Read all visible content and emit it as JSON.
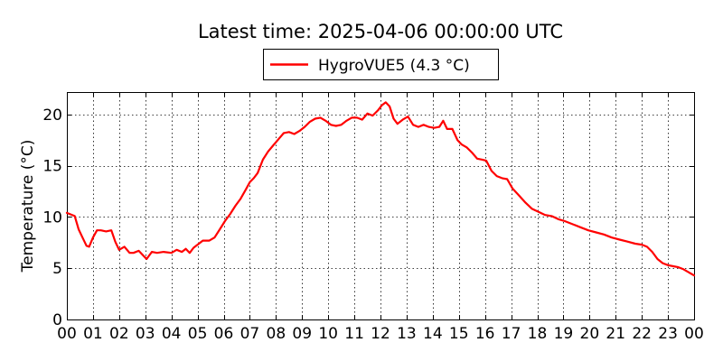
{
  "chart_data": {
    "type": "line",
    "title": "Latest time: 2025-04-06 00:00:00 UTC",
    "xlabel": "",
    "ylabel": "Temperature (°C)",
    "xlim": [
      0,
      24
    ],
    "ylim": [
      0,
      22.2
    ],
    "x_ticks": [
      "00",
      "01",
      "02",
      "03",
      "04",
      "05",
      "06",
      "07",
      "08",
      "09",
      "10",
      "11",
      "12",
      "13",
      "14",
      "15",
      "16",
      "17",
      "18",
      "19",
      "20",
      "21",
      "22",
      "23",
      "00"
    ],
    "y_ticks": [
      0,
      5,
      10,
      15,
      20
    ],
    "grid": true,
    "legend": {
      "placement": "top-center",
      "entries": [
        "HygroVUE5 (4.3 °C)"
      ]
    },
    "series": [
      {
        "name": "HygroVUE5 (4.3 °C)",
        "color": "#ff0000",
        "x": [
          0.0,
          0.3,
          0.45,
          0.6,
          0.75,
          0.85,
          1.0,
          1.15,
          1.3,
          1.5,
          1.7,
          1.85,
          2.0,
          2.2,
          2.4,
          2.55,
          2.75,
          2.9,
          3.05,
          3.25,
          3.45,
          3.7,
          4.0,
          4.2,
          4.4,
          4.55,
          4.7,
          4.85,
          5.0,
          5.2,
          5.45,
          5.65,
          5.85,
          6.05,
          6.25,
          6.45,
          6.65,
          6.85,
          7.0,
          7.15,
          7.3,
          7.5,
          7.7,
          7.9,
          8.1,
          8.3,
          8.5,
          8.7,
          8.9,
          9.1,
          9.3,
          9.5,
          9.7,
          9.9,
          10.1,
          10.3,
          10.5,
          10.7,
          10.9,
          11.1,
          11.3,
          11.5,
          11.7,
          11.9,
          12.05,
          12.2,
          12.35,
          12.5,
          12.65,
          12.85,
          13.05,
          13.25,
          13.45,
          13.65,
          13.85,
          14.05,
          14.25,
          14.4,
          14.55,
          14.75,
          14.95,
          15.1,
          15.3,
          15.5,
          15.7,
          15.9,
          16.05,
          16.25,
          16.45,
          16.65,
          16.85,
          17.05,
          17.3,
          17.55,
          17.8,
          18.05,
          18.3,
          18.55,
          18.8,
          19.05,
          19.35,
          19.65,
          19.95,
          20.25,
          20.55,
          20.85,
          21.15,
          21.45,
          21.75,
          22.0,
          22.2,
          22.4,
          22.6,
          22.8,
          23.0,
          23.2,
          23.4,
          23.6,
          23.8,
          24.0
        ],
        "values": [
          10.4,
          10.1,
          8.8,
          8.0,
          7.2,
          7.1,
          8.0,
          8.7,
          8.7,
          8.6,
          8.7,
          7.6,
          6.8,
          7.1,
          6.5,
          6.5,
          6.7,
          6.3,
          5.9,
          6.6,
          6.5,
          6.6,
          6.5,
          6.8,
          6.6,
          6.9,
          6.5,
          7.0,
          7.3,
          7.7,
          7.7,
          8.0,
          8.8,
          9.6,
          10.3,
          11.1,
          11.8,
          12.7,
          13.4,
          13.8,
          14.3,
          15.6,
          16.4,
          17.0,
          17.6,
          18.2,
          18.3,
          18.1,
          18.4,
          18.8,
          19.3,
          19.6,
          19.7,
          19.4,
          19.0,
          18.9,
          19.0,
          19.4,
          19.7,
          19.7,
          19.5,
          20.1,
          19.9,
          20.4,
          20.9,
          21.2,
          20.8,
          19.6,
          19.1,
          19.5,
          19.8,
          19.0,
          18.8,
          19.0,
          18.8,
          18.7,
          18.8,
          19.4,
          18.6,
          18.6,
          17.5,
          17.1,
          16.8,
          16.3,
          15.7,
          15.6,
          15.5,
          14.5,
          14.0,
          13.8,
          13.7,
          12.8,
          12.1,
          11.4,
          10.8,
          10.5,
          10.2,
          10.1,
          9.8,
          9.6,
          9.3,
          9.0,
          8.7,
          8.5,
          8.3,
          8.0,
          7.8,
          7.6,
          7.4,
          7.3,
          7.1,
          6.6,
          5.9,
          5.5,
          5.3,
          5.2,
          5.1,
          4.9,
          4.6,
          4.3
        ]
      }
    ]
  }
}
